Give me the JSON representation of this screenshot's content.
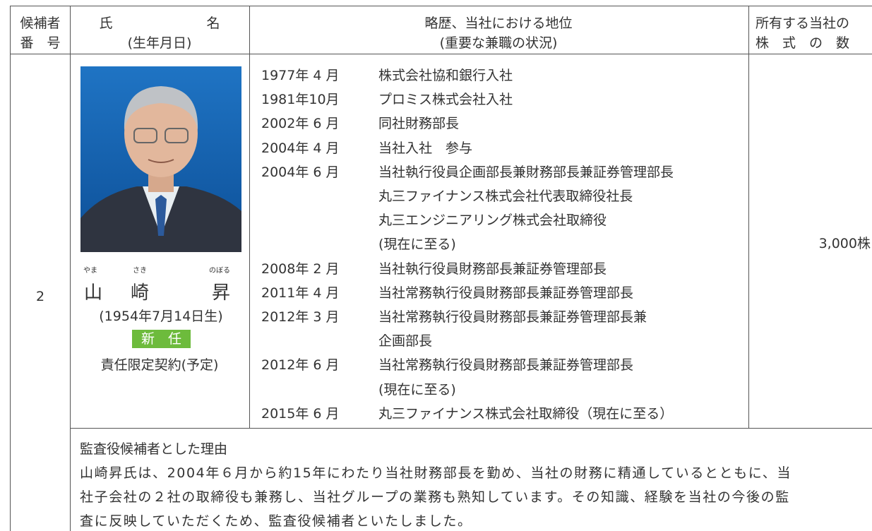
{
  "table": {
    "header": {
      "number": [
        "候補者",
        "番　号"
      ],
      "name": [
        "氏　　　　　　　名",
        "(生年月日)"
      ],
      "career": [
        "略歴、当社における地位",
        "(重要な兼職の状況)"
      ],
      "shares": [
        "所有する当社の",
        "株　式　の　数"
      ]
    },
    "candidate": {
      "number": "2",
      "furigana": [
        "やま",
        "さき",
        "のぼる"
      ],
      "name": [
        "山",
        "崎",
        "昇"
      ],
      "birth": "(1954年7月14日生)",
      "badge": "新　任",
      "contract": "責任限定契約(予定)",
      "history": [
        {
          "date": "1977年 4 月",
          "lines": [
            "株式会社協和銀行入社"
          ]
        },
        {
          "date": "1981年10月",
          "lines": [
            "プロミス株式会社入社"
          ]
        },
        {
          "date": "2002年 6 月",
          "lines": [
            "同社財務部長"
          ]
        },
        {
          "date": "2004年 4 月",
          "lines": [
            "当社入社　参与"
          ]
        },
        {
          "date": "2004年 6 月",
          "lines": [
            "当社執行役員企画部長兼財務部長兼証券管理部長",
            "丸三ファイナンス株式会社代表取締役社長",
            "丸三エンジニアリング株式会社取締役",
            "(現在に至る)"
          ]
        },
        {
          "date": "2008年 2 月",
          "lines": [
            "当社執行役員財務部長兼証券管理部長"
          ]
        },
        {
          "date": "2011年 4 月",
          "lines": [
            "当社常務執行役員財務部長兼証券管理部長"
          ]
        },
        {
          "date": "2012年 3 月",
          "lines": [
            "当社常務執行役員財務部長兼証券管理部長兼",
            "企画部長"
          ]
        },
        {
          "date": "2012年 6 月",
          "lines": [
            "当社常務執行役員財務部長兼証券管理部長",
            "(現在に至る)"
          ]
        },
        {
          "date": "2015年 6 月",
          "lines": [
            "丸三ファイナンス株式会社取締役（現在に至る）"
          ]
        }
      ],
      "shares": "3,000株"
    },
    "reason": {
      "title": "監査役候補者とした理由",
      "lines": [
        "山崎昇氏は、2004年６月から約15年にわたり当社財務部長を勤め、当社の財務に精通しているとともに、当",
        "社子会社の２社の取締役も兼務し、当社グループの業務も熟知しています。その知識、経験を当社の今後の監",
        "査に反映していただくため、監査役候補者といたしました。"
      ]
    }
  }
}
